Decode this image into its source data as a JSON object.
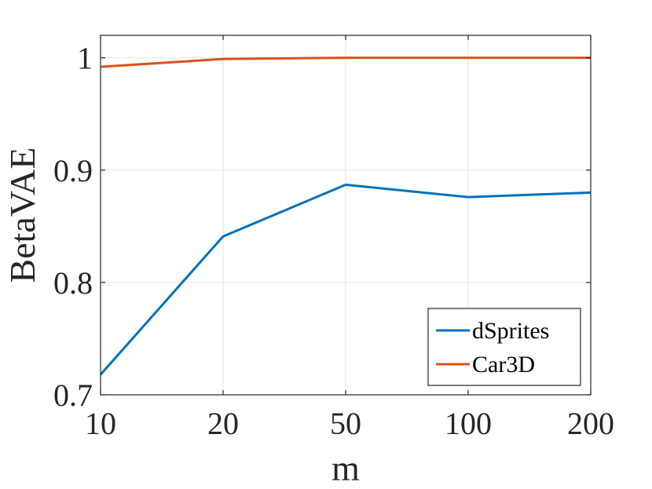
{
  "chart_data": {
    "type": "line",
    "categories": [
      "10",
      "20",
      "50",
      "100",
      "200"
    ],
    "series": [
      {
        "name": "dSprites",
        "color": "#0072BD",
        "values": [
          0.718,
          0.841,
          0.887,
          0.876,
          0.88
        ]
      },
      {
        "name": "Car3D",
        "color": "#D95319",
        "values": [
          0.992,
          0.999,
          1.0,
          1.0,
          1.0
        ]
      }
    ],
    "title": "",
    "xlabel": "m",
    "ylabel": "BetaVAE",
    "ylim": [
      0.7,
      1.02
    ],
    "yticks": [
      {
        "value": 0.7,
        "label": "0.7"
      },
      {
        "value": 0.8,
        "label": "0.8"
      },
      {
        "value": 0.9,
        "label": "0.9"
      },
      {
        "value": 1.0,
        "label": "1"
      }
    ],
    "grid": true,
    "legend_position": "bottom-right"
  }
}
